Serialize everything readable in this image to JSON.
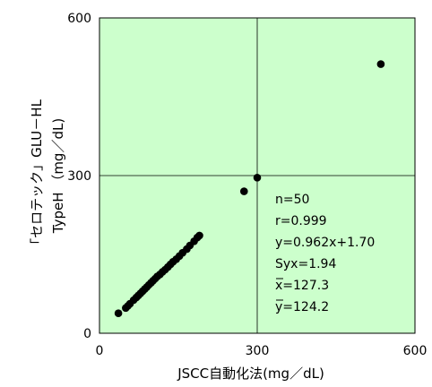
{
  "chart_data": {
    "type": "scatter",
    "xlabel": "JSCC自動化法(mg／dL)",
    "ylabel_lines": [
      "「セロテック」GLU－HL",
      "TypeH （mg／dL)"
    ],
    "xlim": [
      0,
      600
    ],
    "ylim": [
      0,
      600
    ],
    "x_ticks": [
      "0",
      "300",
      "600"
    ],
    "y_ticks": [
      "0",
      "300",
      "600"
    ],
    "grid": "single reference lines at 300",
    "plot_background": "#ccffcc",
    "marker_color": "#000000",
    "points": [
      [
        36,
        38
      ],
      [
        50,
        48
      ],
      [
        54,
        52
      ],
      [
        58,
        56
      ],
      [
        65,
        63
      ],
      [
        70,
        68
      ],
      [
        74,
        72
      ],
      [
        78,
        76
      ],
      [
        82,
        80
      ],
      [
        86,
        84
      ],
      [
        90,
        88
      ],
      [
        94,
        92
      ],
      [
        98,
        96
      ],
      [
        102,
        100
      ],
      [
        106,
        104
      ],
      [
        110,
        108
      ],
      [
        115,
        112
      ],
      [
        120,
        117
      ],
      [
        125,
        121
      ],
      [
        130,
        126
      ],
      [
        135,
        131
      ],
      [
        140,
        136
      ],
      [
        146,
        141
      ],
      [
        152,
        147
      ],
      [
        158,
        153
      ],
      [
        166,
        160
      ],
      [
        172,
        167
      ],
      [
        180,
        175
      ],
      [
        186,
        182
      ],
      [
        190,
        186
      ],
      [
        275,
        270
      ],
      [
        300,
        296
      ],
      [
        535,
        512
      ]
    ],
    "annotation": {
      "n": "n=50",
      "r": "r=0.999",
      "equation": "y=0.962x+1.70",
      "syx": "Syx=1.94",
      "xbar": "x=127.3",
      "ybar": "y=124.2"
    }
  }
}
